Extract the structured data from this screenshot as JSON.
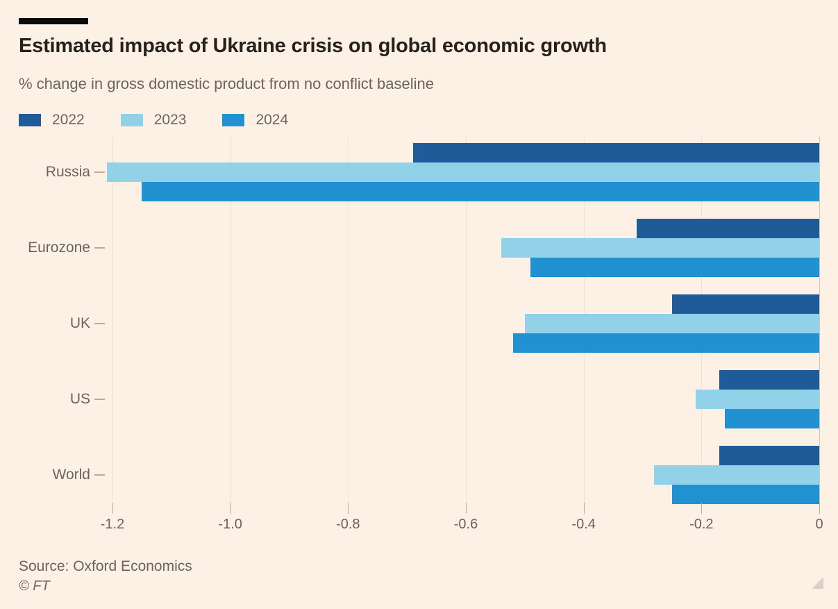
{
  "header": {
    "title": "Estimated impact of Ukraine crisis on global economic growth",
    "subtitle": "% change in gross domestic product from no conflict baseline"
  },
  "legend": [
    {
      "label": "2022",
      "color": "#1f5a99"
    },
    {
      "label": "2023",
      "color": "#91d2e8"
    },
    {
      "label": "2024",
      "color": "#2191d1"
    }
  ],
  "chart_data": {
    "type": "bar",
    "orientation": "horizontal",
    "title": "Estimated impact of Ukraine crisis on global economic growth",
    "subtitle": "% change in gross domestic product from no conflict baseline",
    "categories": [
      "Russia",
      "Eurozone",
      "UK",
      "US",
      "World"
    ],
    "series": [
      {
        "name": "2022",
        "color": "#1f5a99",
        "values": [
          -0.69,
          -0.31,
          -0.25,
          -0.17,
          -0.17
        ]
      },
      {
        "name": "2023",
        "color": "#91d2e8",
        "values": [
          -1.21,
          -0.54,
          -0.5,
          -0.21,
          -0.28
        ]
      },
      {
        "name": "2024",
        "color": "#2191d1",
        "values": [
          -1.15,
          -0.49,
          -0.52,
          -0.16,
          -0.25
        ]
      }
    ],
    "xlabel": "",
    "ylabel": "",
    "xlim": [
      -1.2,
      0
    ],
    "xticks": [
      -1.2,
      -1.0,
      -0.8,
      -0.6,
      -0.4,
      -0.2,
      0
    ],
    "xtick_labels": [
      "-1.2",
      "-1.0",
      "-0.8",
      "-0.6",
      "-0.4",
      "-0.2",
      "0"
    ],
    "grid": true,
    "legend_position": "top"
  },
  "colors": {
    "background": "#fdf0e4",
    "title_text": "#27211c",
    "muted_text": "#6b645e",
    "gridline": "#f0e2d3",
    "axis_line": "#cfc5b8",
    "tick": "#b5aba0",
    "accent_bar": "#0a0a0a"
  },
  "footer": {
    "source": "Source: Oxford Economics",
    "copyright": "© FT"
  }
}
